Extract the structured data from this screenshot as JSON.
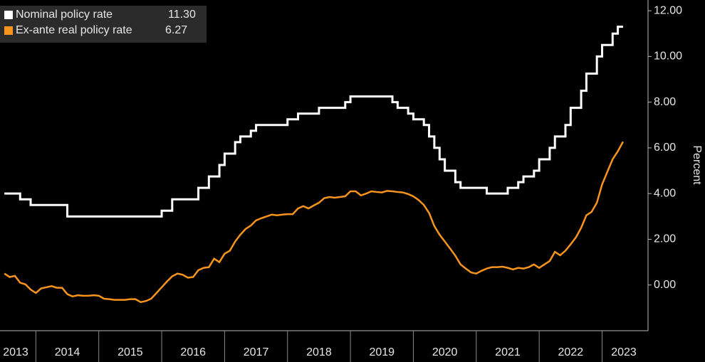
{
  "chart_data": {
    "type": "line",
    "y_label": "Percent",
    "x": [
      2013.5,
      2013.583,
      2013.667,
      2013.75,
      2013.833,
      2013.917,
      2014.0,
      2014.083,
      2014.167,
      2014.25,
      2014.333,
      2014.417,
      2014.5,
      2014.583,
      2014.667,
      2014.75,
      2014.833,
      2014.917,
      2015.0,
      2015.083,
      2015.167,
      2015.25,
      2015.333,
      2015.417,
      2015.5,
      2015.583,
      2015.667,
      2015.75,
      2015.833,
      2015.917,
      2016.0,
      2016.083,
      2016.167,
      2016.25,
      2016.333,
      2016.417,
      2016.5,
      2016.583,
      2016.667,
      2016.75,
      2016.833,
      2016.917,
      2017.0,
      2017.083,
      2017.167,
      2017.25,
      2017.333,
      2017.417,
      2017.5,
      2017.583,
      2017.667,
      2017.75,
      2017.833,
      2017.917,
      2018.0,
      2018.083,
      2018.167,
      2018.25,
      2018.333,
      2018.417,
      2018.5,
      2018.583,
      2018.667,
      2018.75,
      2018.833,
      2018.917,
      2019.0,
      2019.083,
      2019.167,
      2019.25,
      2019.333,
      2019.417,
      2019.5,
      2019.583,
      2019.667,
      2019.75,
      2019.833,
      2019.917,
      2020.0,
      2020.083,
      2020.167,
      2020.25,
      2020.333,
      2020.417,
      2020.5,
      2020.583,
      2020.667,
      2020.75,
      2020.833,
      2020.917,
      2021.0,
      2021.083,
      2021.167,
      2021.25,
      2021.333,
      2021.417,
      2021.5,
      2021.583,
      2021.667,
      2021.75,
      2021.833,
      2021.917,
      2022.0,
      2022.083,
      2022.167,
      2022.25,
      2022.333,
      2022.417,
      2022.5,
      2022.583,
      2022.667,
      2022.75,
      2022.833,
      2022.917,
      2023.0,
      2023.083,
      2023.167,
      2023.25,
      2023.333
    ],
    "series": [
      {
        "name": "Nominal policy rate",
        "color": "#ffffff",
        "step": true,
        "last": {
          "value": 11.3,
          "label": "11.30"
        },
        "values": [
          4.0,
          4.0,
          4.0,
          3.75,
          3.75,
          3.5,
          3.5,
          3.5,
          3.5,
          3.5,
          3.5,
          3.5,
          3.0,
          3.0,
          3.0,
          3.0,
          3.0,
          3.0,
          3.0,
          3.0,
          3.0,
          3.0,
          3.0,
          3.0,
          3.0,
          3.0,
          3.0,
          3.0,
          3.0,
          3.0,
          3.25,
          3.25,
          3.75,
          3.75,
          3.75,
          3.75,
          3.75,
          4.25,
          4.25,
          4.75,
          4.75,
          5.25,
          5.75,
          5.75,
          6.25,
          6.5,
          6.5,
          6.75,
          7.0,
          7.0,
          7.0,
          7.0,
          7.0,
          7.0,
          7.25,
          7.25,
          7.5,
          7.5,
          7.5,
          7.5,
          7.75,
          7.75,
          7.75,
          7.75,
          7.75,
          8.0,
          8.25,
          8.25,
          8.25,
          8.25,
          8.25,
          8.25,
          8.25,
          8.25,
          8.0,
          7.75,
          7.75,
          7.5,
          7.25,
          7.25,
          7.0,
          6.5,
          6.0,
          5.5,
          5.0,
          5.0,
          4.5,
          4.25,
          4.25,
          4.25,
          4.25,
          4.25,
          4.0,
          4.0,
          4.0,
          4.0,
          4.25,
          4.25,
          4.5,
          4.75,
          4.75,
          5.0,
          5.5,
          5.5,
          6.0,
          6.5,
          6.5,
          7.0,
          7.75,
          7.75,
          8.5,
          9.25,
          9.25,
          10.0,
          10.5,
          10.5,
          11.0,
          11.3,
          11.3
        ]
      },
      {
        "name": "Ex-ante real policy rate",
        "color": "#f7941d",
        "step": false,
        "last": {
          "value": 6.27,
          "label": "6.27"
        },
        "values": [
          0.5,
          0.35,
          0.4,
          0.1,
          0.03,
          -0.2,
          -0.35,
          -0.15,
          -0.1,
          -0.05,
          -0.12,
          -0.12,
          -0.4,
          -0.5,
          -0.45,
          -0.47,
          -0.47,
          -0.45,
          -0.47,
          -0.6,
          -0.62,
          -0.65,
          -0.65,
          -0.65,
          -0.62,
          -0.62,
          -0.75,
          -0.7,
          -0.6,
          -0.35,
          -0.1,
          0.15,
          0.38,
          0.5,
          0.45,
          0.32,
          0.35,
          0.65,
          0.75,
          0.78,
          1.15,
          1.0,
          1.37,
          1.5,
          1.9,
          2.2,
          2.45,
          2.6,
          2.83,
          2.92,
          3.0,
          3.08,
          3.05,
          3.08,
          3.1,
          3.1,
          3.35,
          3.45,
          3.35,
          3.48,
          3.6,
          3.8,
          3.85,
          3.82,
          3.85,
          3.88,
          4.1,
          4.1,
          3.92,
          4.0,
          4.1,
          4.07,
          4.05,
          4.12,
          4.1,
          4.07,
          4.05,
          3.98,
          3.88,
          3.72,
          3.5,
          3.15,
          2.58,
          2.2,
          1.9,
          1.6,
          1.28,
          0.9,
          0.72,
          0.55,
          0.5,
          0.62,
          0.72,
          0.78,
          0.78,
          0.8,
          0.75,
          0.68,
          0.75,
          0.72,
          0.78,
          0.9,
          0.75,
          0.9,
          1.05,
          1.45,
          1.3,
          1.5,
          1.78,
          2.08,
          2.5,
          3.05,
          3.2,
          3.6,
          4.4,
          4.95,
          5.5,
          5.85,
          6.27
        ]
      }
    ],
    "xlim": [
      2013.43,
      2023.73
    ],
    "xticks": [
      {
        "value": 2013.5,
        "label": "2013"
      },
      {
        "value": 2014.5,
        "label": "2014"
      },
      {
        "value": 2015.5,
        "label": "2015"
      },
      {
        "value": 2016.5,
        "label": "2016"
      },
      {
        "value": 2017.5,
        "label": "2017"
      },
      {
        "value": 2018.5,
        "label": "2018"
      },
      {
        "value": 2019.5,
        "label": "2019"
      },
      {
        "value": 2020.5,
        "label": "2020"
      },
      {
        "value": 2021.5,
        "label": "2021"
      },
      {
        "value": 2022.5,
        "label": "2022"
      },
      {
        "value": 2023.5,
        "label": "2023"
      }
    ],
    "ylim": [
      -2,
      12.47
    ],
    "yticks": [
      {
        "value": 0,
        "label": "0.00"
      },
      {
        "value": 2,
        "label": "2.00"
      },
      {
        "value": 4,
        "label": "4.00"
      },
      {
        "value": 6,
        "label": "6.00"
      },
      {
        "value": 8,
        "label": "8.00"
      },
      {
        "value": 10,
        "label": "10.00"
      },
      {
        "value": 12,
        "label": "12.00"
      }
    ],
    "grid": false,
    "legend": "top-left"
  }
}
